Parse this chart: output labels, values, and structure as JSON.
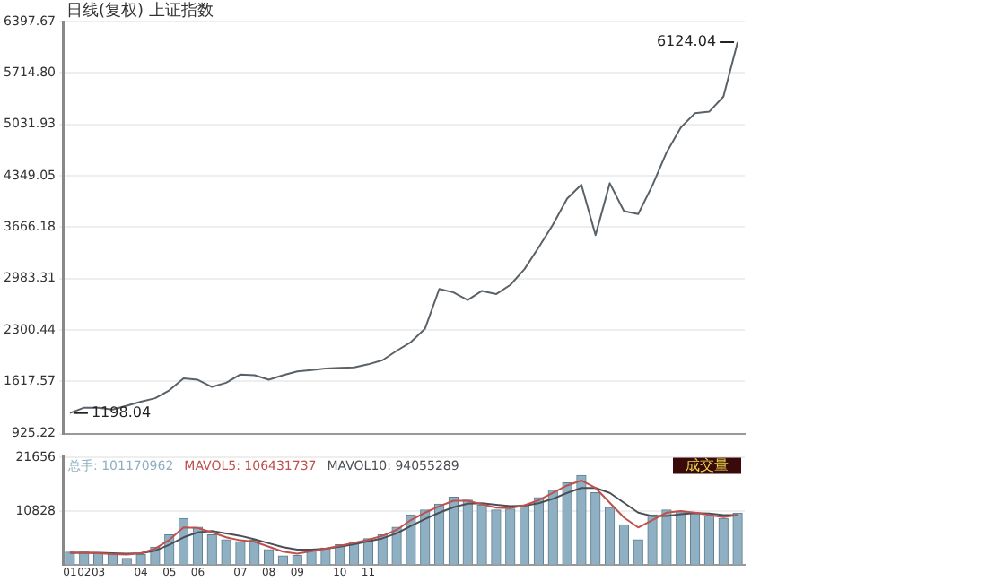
{
  "chart_data": [
    {
      "type": "line",
      "title": "日线(复权) 上证指数",
      "categories": [
        null,
        null,
        null,
        null,
        null,
        null,
        null,
        null,
        null,
        null,
        null,
        null,
        null,
        null,
        null,
        null,
        null,
        null,
        null,
        null,
        null,
        null,
        null,
        null,
        null,
        null,
        null,
        null,
        null,
        null,
        null,
        null,
        null,
        null,
        null,
        null,
        null,
        null,
        null,
        null,
        null,
        null,
        null,
        null,
        null,
        null,
        null,
        null
      ],
      "tick_labels": "y",
      "marker": "none",
      "grid": "y",
      "series": [
        {
          "color": "#5a6268",
          "values": [
            1198.04,
            1270,
            1270,
            1245,
            1295,
            1350,
            1395,
            1500,
            1660,
            1640,
            1545,
            1601,
            1710,
            1700,
            1640,
            1700,
            1750,
            1770,
            1790,
            1800,
            1805,
            1845,
            1900,
            2025,
            2140,
            2320,
            2846,
            2800,
            2700,
            2820,
            2777,
            2900,
            3110,
            3400,
            3700,
            4045,
            4230,
            3560,
            4250,
            3880,
            3840,
            4220,
            4660,
            4990,
            5180,
            5200,
            5400,
            6124.04
          ]
        }
      ],
      "ylim": [
        925.22,
        6397.67
      ],
      "yticks": [
        {
          "value": 925.22,
          "label": "925.22"
        },
        {
          "value": 1617.57,
          "label": "1617.57"
        },
        {
          "value": 2300.44,
          "label": "2300.44"
        },
        {
          "value": 2983.31,
          "label": "2983.31"
        },
        {
          "value": 3666.18,
          "label": "3666.18"
        },
        {
          "value": 4349.05,
          "label": "4349.05"
        },
        {
          "value": 5031.93,
          "label": "5031.93"
        },
        {
          "value": 5714.8,
          "label": "5714.80"
        },
        {
          "value": 6397.67,
          "label": "6397.67"
        }
      ],
      "annotations": [
        "6124.04",
        "1198.04"
      ]
    },
    {
      "type": "bar",
      "categories": [
        "01",
        "02",
        "03",
        null,
        null,
        "04",
        null,
        "05",
        null,
        "06",
        null,
        null,
        "07",
        null,
        "08",
        null,
        "09",
        null,
        null,
        "10",
        null,
        "11",
        null,
        null,
        null,
        null,
        null,
        null,
        null,
        null,
        null,
        null,
        null,
        null,
        null,
        null,
        null,
        null,
        null,
        null,
        null,
        null,
        null,
        null,
        null,
        null,
        null,
        null
      ],
      "legend": "top left",
      "grid": "y",
      "series": [
        {
          "name": "总手: 101170962",
          "color": "#8fb0c2",
          "values": [
            2500,
            2500,
            2400,
            2000,
            1200,
            2000,
            3500,
            6000,
            9300,
            7500,
            6000,
            5000,
            4600,
            4900,
            3000,
            1700,
            1800,
            2900,
            3300,
            4000,
            4500,
            5200,
            6000,
            7500,
            10000,
            11000,
            12200,
            13600,
            13000,
            12000,
            11000,
            11200,
            12000,
            13500,
            15000,
            16500,
            18000,
            14500,
            11500,
            8000,
            5000,
            10000,
            11000,
            10800,
            10400,
            9800,
            9300,
            10400
          ]
        },
        {
          "name": "MAVOL5: 106431737",
          "type": "line",
          "color": "#c0504d",
          "values": [
            2400,
            2400,
            2300,
            2100,
            2000,
            2300,
            3200,
            5000,
            7500,
            7400,
            6500,
            5500,
            4900,
            4600,
            3600,
            2600,
            2200,
            2700,
            3200,
            3800,
            4400,
            5000,
            5800,
            7000,
            9000,
            10500,
            11800,
            12900,
            12900,
            12200,
            11500,
            11400,
            12000,
            13000,
            14500,
            16000,
            17000,
            15500,
            12500,
            9500,
            7500,
            9000,
            10500,
            10800,
            10500,
            10000,
            9600,
            10000
          ]
        },
        {
          "name": "MAVOL10: 94055289",
          "type": "line",
          "color": "#4a4f55",
          "values": [
            2400,
            2400,
            2400,
            2300,
            2200,
            2300,
            2800,
            4000,
            5500,
            6500,
            6800,
            6300,
            5800,
            5100,
            4300,
            3500,
            3000,
            3000,
            3200,
            3600,
            4100,
            4700,
            5300,
            6300,
            7800,
            9200,
            10500,
            11600,
            12300,
            12400,
            12100,
            11800,
            11900,
            12400,
            13300,
            14500,
            15500,
            15500,
            14500,
            12500,
            10500,
            9800,
            9800,
            10200,
            10400,
            10300,
            10000,
            10000
          ]
        }
      ],
      "marker": "none",
      "ylim": [
        0,
        22000
      ],
      "yticks": [
        10828,
        21656
      ],
      "annotations": [
        "成交量"
      ]
    }
  ]
}
